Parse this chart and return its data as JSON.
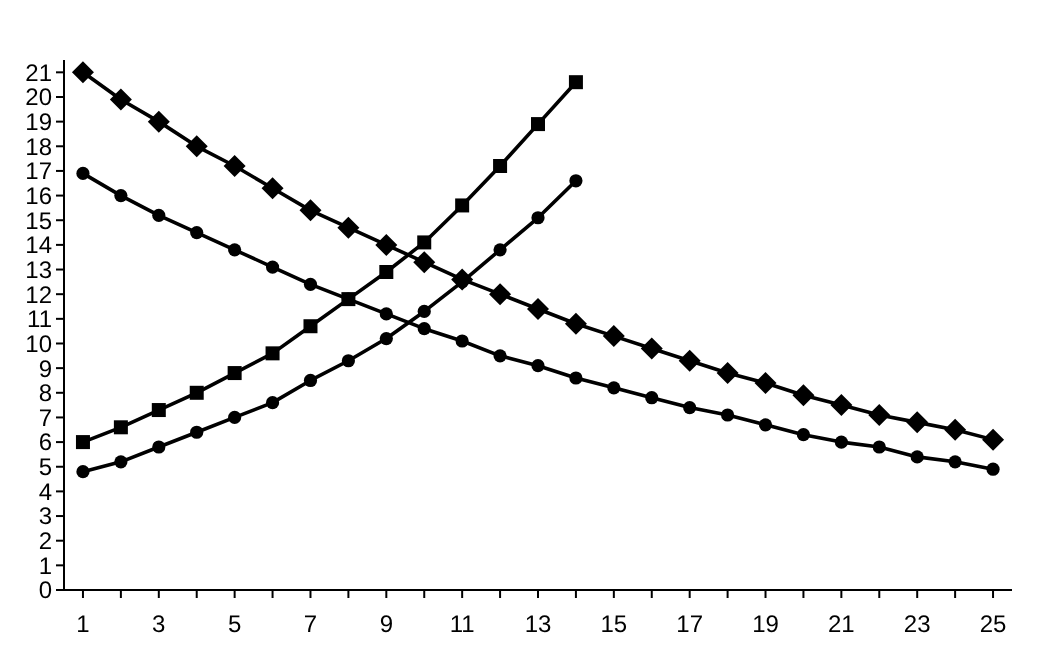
{
  "chart_data": {
    "type": "line",
    "xlim": [
      0.5,
      25.5
    ],
    "xticks": [
      1,
      {
        "value": 2,
        "label": null
      },
      3,
      {
        "value": 4,
        "label": null
      },
      5,
      {
        "value": 6,
        "label": null
      },
      7,
      {
        "value": 8,
        "label": null
      },
      9,
      {
        "value": 10,
        "label": null
      },
      11,
      {
        "value": 12,
        "label": null
      },
      13,
      {
        "value": 14,
        "label": null
      },
      15,
      {
        "value": 16,
        "label": null
      },
      17,
      {
        "value": 18,
        "label": null
      },
      19,
      {
        "value": 20,
        "label": null
      },
      21,
      {
        "value": 22,
        "label": null
      },
      23,
      {
        "value": 24,
        "label": null
      },
      25
    ],
    "ylim": [
      0,
      21.5
    ],
    "yticks": [
      0,
      1,
      2,
      3,
      4,
      5,
      6,
      7,
      8,
      9,
      10,
      11,
      12,
      13,
      14,
      15,
      16,
      17,
      18,
      19,
      20,
      21
    ],
    "grid": false,
    "line_style": "solid",
    "x": [
      1,
      2,
      3,
      4,
      5,
      6,
      7,
      8,
      9,
      10,
      11,
      12,
      13,
      14,
      15,
      16,
      17,
      18,
      19,
      20,
      21,
      22,
      23,
      24,
      25
    ],
    "series": [
      {
        "color": "#000000",
        "marker": "diamond",
        "values": [
          21,
          19.9,
          19,
          18,
          17.2,
          16.3,
          15.4,
          14.7,
          14,
          13.3,
          12.6,
          12,
          11.4,
          10.8,
          10.3,
          9.8,
          9.3,
          8.8,
          8.4,
          7.9,
          7.5,
          7.1,
          6.8,
          6.5,
          6.1
        ]
      },
      {
        "color": "#000000",
        "marker": "circle",
        "values": [
          16.9,
          16,
          15.2,
          14.5,
          13.8,
          13.1,
          12.4,
          11.8,
          11.2,
          10.6,
          10.1,
          9.5,
          9.1,
          8.6,
          8.2,
          7.8,
          7.4,
          7.1,
          6.7,
          6.3,
          6,
          5.8,
          5.4,
          5.2,
          4.9
        ]
      },
      {
        "color": "#000000",
        "marker": "square",
        "values": [
          6,
          6.6,
          7.3,
          8,
          8.8,
          9.6,
          10.7,
          11.8,
          12.9,
          14.1,
          15.6,
          17.2,
          18.9,
          20.6,
          null,
          null,
          null,
          null,
          null,
          null,
          null,
          null,
          null,
          null,
          null
        ]
      },
      {
        "color": "#000000",
        "marker": "circle",
        "values": [
          4.8,
          5.2,
          5.8,
          6.4,
          7,
          7.6,
          8.5,
          9.3,
          10.2,
          11.3,
          12.5,
          13.8,
          15.1,
          16.6,
          null,
          null,
          null,
          null,
          null,
          null,
          null,
          null,
          null,
          null,
          null
        ]
      }
    ]
  }
}
